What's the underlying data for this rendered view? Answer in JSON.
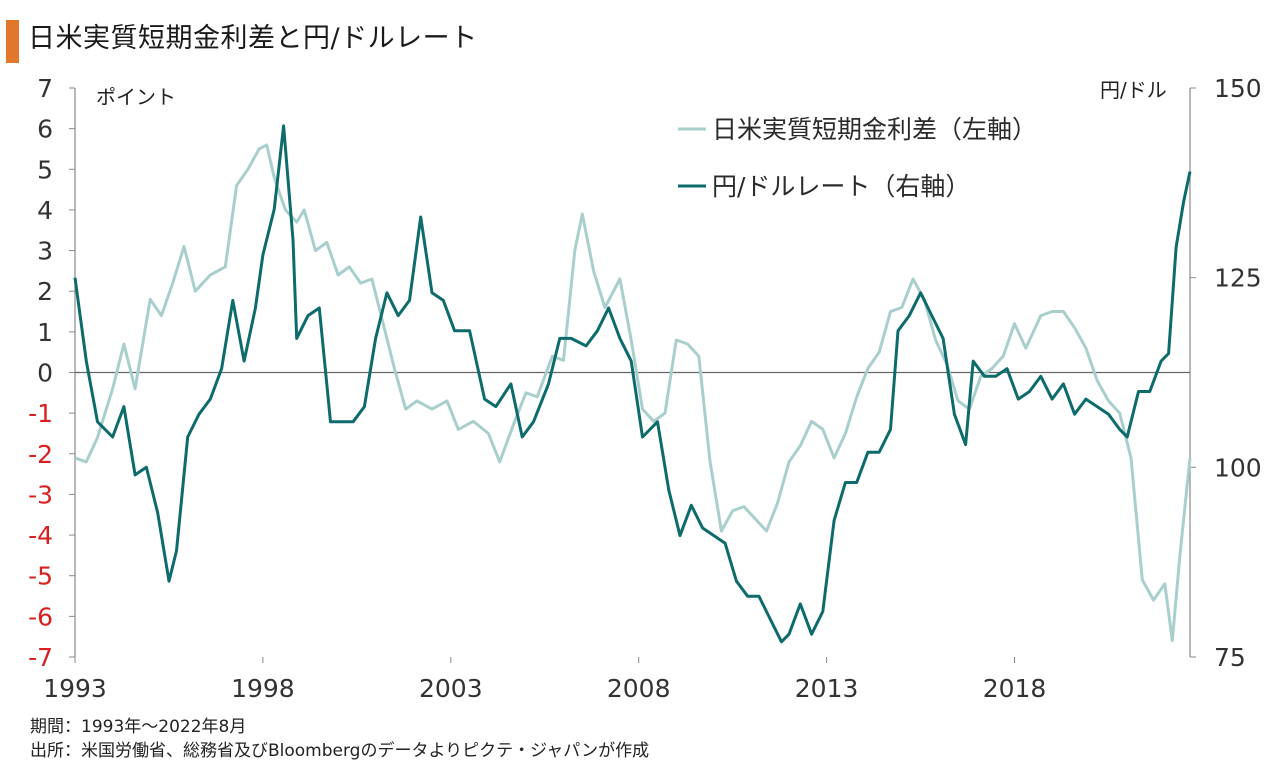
{
  "title": "日米実質短期金利差と円/ドルレート",
  "footnotes": {
    "period": "期間：1993年〜2022年8月",
    "source": "出所：米国労働省、総務省及びBloombergのデータよりピクテ・ジャパンが作成"
  },
  "colors": {
    "title_accent": "#e0772b",
    "spread_line": "#a9cfcd",
    "fx_line": "#0e6b6b",
    "axis": "#888888",
    "zero_line": "#666666",
    "negative_tick": "#d92020"
  },
  "chart_data": {
    "type": "line",
    "title": "日米実質短期金利差と円/ドルレート",
    "left_axis": {
      "unit": "ポイント",
      "ylim": [
        -7,
        7
      ],
      "ticks": [
        "7",
        "6",
        "5",
        "4",
        "3",
        "2",
        "1",
        "0",
        "-1",
        "-2",
        "-3",
        "-4",
        "-5",
        "-6",
        "-7"
      ],
      "negative_ticks_colored": true
    },
    "right_axis": {
      "unit": "円/ドル",
      "ylim": [
        75,
        150
      ],
      "ticks": [
        "150",
        "125",
        "100",
        "75"
      ]
    },
    "x_axis": {
      "xlim": [
        1993,
        2022.67
      ],
      "ticks": [
        "1993",
        "1998",
        "2003",
        "2008",
        "2013",
        "2018"
      ]
    },
    "grid": false,
    "zero_line": true,
    "legend_position": "top-right",
    "series": [
      {
        "name": "日米実質短期金利差（左軸）",
        "axis": "left",
        "color": "#a9cfcd",
        "points": [
          [
            1993.0,
            -2.1
          ],
          [
            1993.3,
            -2.2
          ],
          [
            1993.6,
            -1.6
          ],
          [
            1994.0,
            -0.4
          ],
          [
            1994.3,
            0.7
          ],
          [
            1994.6,
            -0.4
          ],
          [
            1995.0,
            1.8
          ],
          [
            1995.3,
            1.4
          ],
          [
            1995.6,
            2.2
          ],
          [
            1995.9,
            3.1
          ],
          [
            1996.2,
            2.0
          ],
          [
            1996.6,
            2.4
          ],
          [
            1997.0,
            2.6
          ],
          [
            1997.3,
            4.6
          ],
          [
            1997.6,
            5.0
          ],
          [
            1997.9,
            5.5
          ],
          [
            1998.1,
            5.6
          ],
          [
            1998.3,
            4.8
          ],
          [
            1998.6,
            4.0
          ],
          [
            1998.9,
            3.7
          ],
          [
            1999.1,
            4.0
          ],
          [
            1999.4,
            3.0
          ],
          [
            1999.7,
            3.2
          ],
          [
            2000.0,
            2.4
          ],
          [
            2000.3,
            2.6
          ],
          [
            2000.6,
            2.2
          ],
          [
            2000.9,
            2.3
          ],
          [
            2001.2,
            1.2
          ],
          [
            2001.5,
            0.1
          ],
          [
            2001.8,
            -0.9
          ],
          [
            2002.1,
            -0.7
          ],
          [
            2002.5,
            -0.9
          ],
          [
            2002.9,
            -0.7
          ],
          [
            2003.2,
            -1.4
          ],
          [
            2003.6,
            -1.2
          ],
          [
            2004.0,
            -1.5
          ],
          [
            2004.3,
            -2.2
          ],
          [
            2004.7,
            -1.2
          ],
          [
            2005.0,
            -0.5
          ],
          [
            2005.3,
            -0.6
          ],
          [
            2005.7,
            0.4
          ],
          [
            2006.0,
            0.3
          ],
          [
            2006.3,
            3.0
          ],
          [
            2006.5,
            3.9
          ],
          [
            2006.8,
            2.5
          ],
          [
            2007.1,
            1.6
          ],
          [
            2007.5,
            2.3
          ],
          [
            2007.8,
            0.8
          ],
          [
            2008.1,
            -0.9
          ],
          [
            2008.4,
            -1.2
          ],
          [
            2008.7,
            -1.0
          ],
          [
            2009.0,
            0.8
          ],
          [
            2009.3,
            0.7
          ],
          [
            2009.6,
            0.4
          ],
          [
            2009.9,
            -2.2
          ],
          [
            2010.2,
            -3.9
          ],
          [
            2010.5,
            -3.4
          ],
          [
            2010.8,
            -3.3
          ],
          [
            2011.1,
            -3.6
          ],
          [
            2011.4,
            -3.9
          ],
          [
            2011.7,
            -3.2
          ],
          [
            2012.0,
            -2.2
          ],
          [
            2012.3,
            -1.8
          ],
          [
            2012.6,
            -1.2
          ],
          [
            2012.9,
            -1.4
          ],
          [
            2013.2,
            -2.1
          ],
          [
            2013.5,
            -1.5
          ],
          [
            2013.8,
            -0.6
          ],
          [
            2014.1,
            0.1
          ],
          [
            2014.4,
            0.5
          ],
          [
            2014.7,
            1.5
          ],
          [
            2015.0,
            1.6
          ],
          [
            2015.3,
            2.3
          ],
          [
            2015.6,
            1.8
          ],
          [
            2015.9,
            0.8
          ],
          [
            2016.2,
            0.2
          ],
          [
            2016.5,
            -0.7
          ],
          [
            2016.8,
            -0.9
          ],
          [
            2017.1,
            -0.1
          ],
          [
            2017.4,
            0.1
          ],
          [
            2017.7,
            0.4
          ],
          [
            2018.0,
            1.2
          ],
          [
            2018.3,
            0.6
          ],
          [
            2018.7,
            1.4
          ],
          [
            2019.0,
            1.5
          ],
          [
            2019.3,
            1.5
          ],
          [
            2019.6,
            1.1
          ],
          [
            2019.9,
            0.6
          ],
          [
            2020.2,
            -0.2
          ],
          [
            2020.5,
            -0.7
          ],
          [
            2020.8,
            -1.0
          ],
          [
            2021.1,
            -2.1
          ],
          [
            2021.4,
            -5.1
          ],
          [
            2021.7,
            -5.6
          ],
          [
            2022.0,
            -5.2
          ],
          [
            2022.2,
            -6.6
          ],
          [
            2022.4,
            -4.5
          ],
          [
            2022.67,
            -2.1
          ]
        ]
      },
      {
        "name": "円/ドルレート（右軸）",
        "axis": "right",
        "color": "#0e6b6b",
        "points": [
          [
            1993.0,
            125
          ],
          [
            1993.3,
            114
          ],
          [
            1993.6,
            106
          ],
          [
            1994.0,
            104
          ],
          [
            1994.3,
            108
          ],
          [
            1994.6,
            99
          ],
          [
            1994.9,
            100
          ],
          [
            1995.2,
            94
          ],
          [
            1995.5,
            85
          ],
          [
            1995.7,
            89
          ],
          [
            1996.0,
            104
          ],
          [
            1996.3,
            107
          ],
          [
            1996.6,
            109
          ],
          [
            1996.9,
            113
          ],
          [
            1997.2,
            122
          ],
          [
            1997.5,
            114
          ],
          [
            1997.8,
            121
          ],
          [
            1998.0,
            128
          ],
          [
            1998.3,
            134
          ],
          [
            1998.55,
            145
          ],
          [
            1998.8,
            130
          ],
          [
            1998.9,
            117
          ],
          [
            1999.2,
            120
          ],
          [
            1999.5,
            121
          ],
          [
            1999.8,
            106
          ],
          [
            2000.1,
            106
          ],
          [
            2000.4,
            106
          ],
          [
            2000.7,
            108
          ],
          [
            2001.0,
            117
          ],
          [
            2001.3,
            123
          ],
          [
            2001.6,
            120
          ],
          [
            2001.9,
            122
          ],
          [
            2002.2,
            133
          ],
          [
            2002.5,
            123
          ],
          [
            2002.8,
            122
          ],
          [
            2003.1,
            118
          ],
          [
            2003.5,
            118
          ],
          [
            2003.9,
            109
          ],
          [
            2004.2,
            108
          ],
          [
            2004.6,
            111
          ],
          [
            2004.9,
            104
          ],
          [
            2005.2,
            106
          ],
          [
            2005.6,
            111
          ],
          [
            2005.9,
            117
          ],
          [
            2006.2,
            117
          ],
          [
            2006.6,
            116
          ],
          [
            2006.9,
            118
          ],
          [
            2007.2,
            121
          ],
          [
            2007.5,
            117
          ],
          [
            2007.8,
            114
          ],
          [
            2008.1,
            104
          ],
          [
            2008.5,
            106
          ],
          [
            2008.8,
            97
          ],
          [
            2009.1,
            91
          ],
          [
            2009.4,
            95
          ],
          [
            2009.7,
            92
          ],
          [
            2010.0,
            91
          ],
          [
            2010.3,
            90
          ],
          [
            2010.6,
            85
          ],
          [
            2010.9,
            83
          ],
          [
            2011.2,
            83
          ],
          [
            2011.5,
            80
          ],
          [
            2011.8,
            77
          ],
          [
            2012.0,
            78
          ],
          [
            2012.3,
            82
          ],
          [
            2012.6,
            78
          ],
          [
            2012.9,
            81
          ],
          [
            2013.2,
            93
          ],
          [
            2013.5,
            98
          ],
          [
            2013.8,
            98
          ],
          [
            2014.1,
            102
          ],
          [
            2014.4,
            102
          ],
          [
            2014.7,
            105
          ],
          [
            2014.9,
            118
          ],
          [
            2015.2,
            120
          ],
          [
            2015.5,
            123
          ],
          [
            2015.8,
            120
          ],
          [
            2016.1,
            117
          ],
          [
            2016.4,
            107
          ],
          [
            2016.7,
            103
          ],
          [
            2016.9,
            114
          ],
          [
            2017.2,
            112
          ],
          [
            2017.5,
            112
          ],
          [
            2017.8,
            113
          ],
          [
            2018.1,
            109
          ],
          [
            2018.4,
            110
          ],
          [
            2018.7,
            112
          ],
          [
            2019.0,
            109
          ],
          [
            2019.3,
            111
          ],
          [
            2019.6,
            107
          ],
          [
            2019.9,
            109
          ],
          [
            2020.2,
            108
          ],
          [
            2020.5,
            107
          ],
          [
            2020.8,
            105
          ],
          [
            2021.0,
            104
          ],
          [
            2021.3,
            110
          ],
          [
            2021.6,
            110
          ],
          [
            2021.9,
            114
          ],
          [
            2022.1,
            115
          ],
          [
            2022.3,
            129
          ],
          [
            2022.5,
            135
          ],
          [
            2022.67,
            139
          ]
        ]
      }
    ]
  }
}
